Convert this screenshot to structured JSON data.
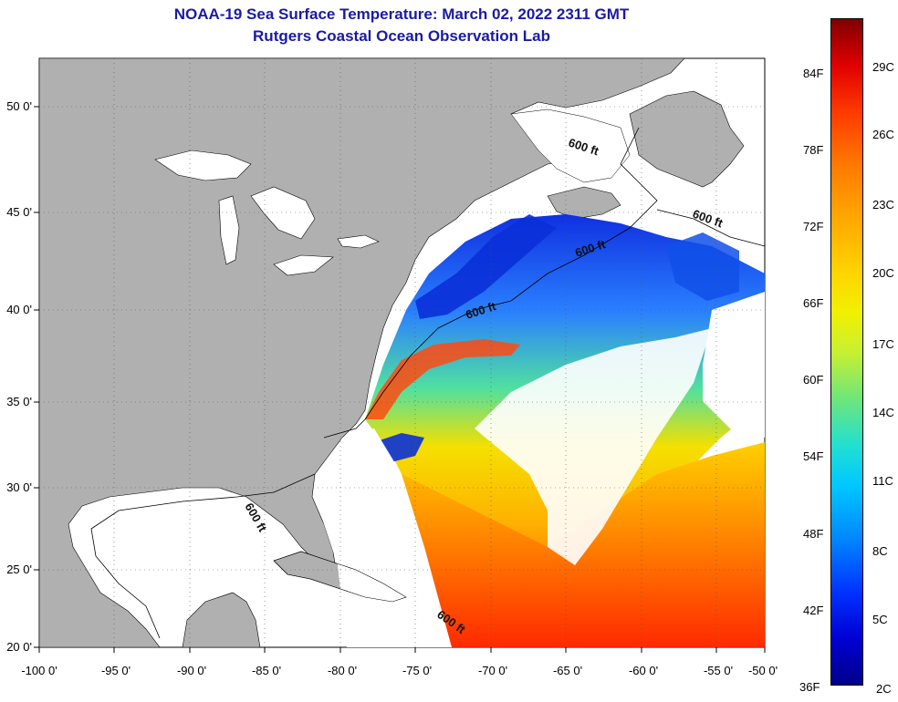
{
  "title": "NOAA-19 Sea Surface Temperature:  March 02, 2022 2311 GMT",
  "subtitle": "Rutgers Coastal Ocean Observation Lab",
  "lon_ticks": [
    "-100 0'",
    "-95 0'",
    "-90 0'",
    "-85 0'",
    "-80 0'",
    "-75 0'",
    "-70 0'",
    "-65 0'",
    "-60 0'",
    "-55 0'",
    "-50 0'"
  ],
  "lat_ticks": [
    "50 0'",
    "45 0'",
    "40 0'",
    "35 0'",
    "30 0'",
    "25 0'",
    "20 0'"
  ],
  "contour_labels": [
    "600 ft",
    "600 ft",
    "600 ft",
    "600 ft",
    "600 ft",
    "600 ft"
  ],
  "colorbar": {
    "fahrenheit": [
      "84F",
      "78F",
      "72F",
      "66F",
      "60F",
      "54F",
      "48F",
      "42F",
      "36F"
    ],
    "celsius": [
      "29C",
      "26C",
      "23C",
      "20C",
      "17C",
      "14C",
      "11C",
      "8C",
      "5C",
      "2C"
    ],
    "range_c": [
      2,
      31
    ]
  },
  "colors": {
    "title": "#1a1aa8",
    "land": "#b0b0b0",
    "no_data": "#ffffff"
  }
}
